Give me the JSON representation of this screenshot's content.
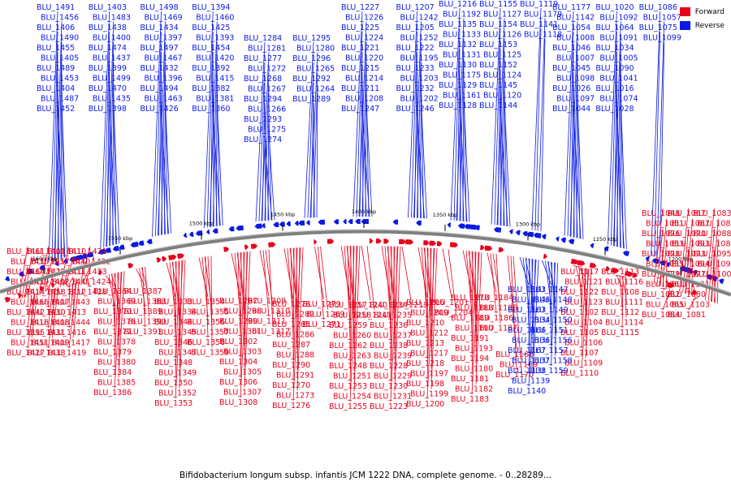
{
  "legend": {
    "forward": {
      "label": "Forward",
      "color": "#e8001c"
    },
    "reverse": {
      "label": "Reverse",
      "color": "#0b1ae6"
    }
  },
  "caption": "Bifidobacterium longum subsp. infantis JCM 1222 DNA, complete genome. - 0..28289...",
  "axis": {
    "color": "#808080",
    "ticks": [
      "1600 kbp",
      "1550 kbp",
      "1500 kbp",
      "1450 kbp",
      "1400 kbp",
      "1350 kbp",
      "1300 kbp",
      "1250 kbp",
      "1200 kbp"
    ]
  },
  "reverse_top_labels": [
    "BLU_1491",
    "BLU_1456",
    "BLU_1406",
    "BLU_1490",
    "BLU_1455",
    "BLU_1405",
    "BLU_1489",
    "BLU_1453",
    "BLU_1404",
    "BLU_1487",
    "BLU_1452",
    "BLU_1403",
    "BLU_1483",
    "BLU_1438",
    "BLU_1400",
    "BLU_1474",
    "BLU_1437",
    "BLU_1399",
    "BLU_1499",
    "BLU_1470",
    "BLU_1435",
    "BLU_1398",
    "BLU_1498",
    "BLU_1469",
    "BLU_1434",
    "BLU_1397",
    "BLU_1497",
    "BLU_1467",
    "BLU_1432",
    "BLU_1396",
    "BLU_1494",
    "BLU_1463",
    "BLU_1426",
    "BLU_1394",
    "BLU_1460",
    "BLU_1425",
    "BLU_1393",
    "BLU_1454",
    "BLU_1420",
    "BLU_1392",
    "BLU_1415",
    "BLU_1382",
    "BLU_1381",
    "BLU_1360",
    "BLU_1284",
    "BLU_1281",
    "BLU_1277",
    "BLU_1272",
    "BLU_1268",
    "BLU_1267",
    "BLU_1294",
    "BLU_1266",
    "BLU_1293",
    "BLU_1275",
    "BLU_1274",
    "BLU_1295",
    "BLU_1280",
    "BLU_1296",
    "BLU_1265",
    "BLU_1292",
    "BLU_1264",
    "BLU_1289",
    "BLU_1227",
    "BLU_1226",
    "BLU_1225",
    "BLU_1224",
    "BLU_1221",
    "BLU_1220",
    "BLU_1215",
    "BLU_1214",
    "BLU_1211",
    "BLU_1208",
    "BLU_1247",
    "BLU_1207",
    "BLU_1242",
    "BLU_1205",
    "BLU_1252",
    "BLU_1222",
    "BLU_1195",
    "BLU_1233",
    "BLU_1203",
    "BLU_1232",
    "BLU_1202",
    "BLU_1246",
    "BLU_1216",
    "BLU_1192",
    "BLU_1135",
    "BLU_1133",
    "BLU_1132",
    "BLU_1131",
    "BLU_1130",
    "BLU_1175",
    "BLU_1129",
    "BLU_1161",
    "BLU_1128",
    "BLU_1155",
    "BLU_1127",
    "BLU_1154",
    "BLU_1126",
    "BLU_1153",
    "BLU_1125",
    "BLU_1152",
    "BLU_1124",
    "BLU_1145",
    "BLU_1120",
    "BLU_1144",
    "BLU_1119",
    "BLU_1179",
    "BLU_1141",
    "BLU_1118",
    "BLU_1177",
    "BLU_1142",
    "BLU_1054",
    "BLU_1008",
    "BLU_1046",
    "BLU_1007",
    "BLU_1045",
    "BLU_1098",
    "BLU_1026",
    "BLU_1097",
    "BLU_1044",
    "BLU_1020",
    "BLU_1092",
    "BLU_1064",
    "BLU_1091",
    "BLU_1034",
    "BLU_1005",
    "BLU_1090",
    "BLU_1041",
    "BLU_1016",
    "BLU_1074",
    "BLU_1028",
    "BLU_1086",
    "BLU_1057",
    "BLU_1075",
    "BLU_1099"
  ],
  "forward_bottom_labels": [
    "BLU_1461",
    "BLU_1436",
    "BLU_1464",
    "BLU_1439",
    "BLU_1414",
    "BLU_1466",
    "BLU_1442",
    "BLU_1418",
    "BLU_1395",
    "BLU_1451",
    "BLU_1427",
    "BLU_1401",
    "BLU_1457",
    "BLU_1429",
    "BLU_1402",
    "BLU_1458",
    "BLU_1407",
    "BLU_1430",
    "BLU_1408",
    "BLU_1431",
    "BLU_1409",
    "BLU_1433",
    "BLU_1410",
    "BLU_1440",
    "BLU_1411",
    "BLU_1441",
    "BLU_1412",
    "BLU_1443",
    "BLU_1413",
    "BLU_1444",
    "BLU_1416",
    "BLU_1417",
    "BLU_1419",
    "BLU_1421",
    "BLU_1422",
    "BLU_1423",
    "BLU_1424",
    "BLU_1428",
    "BLU_1364",
    "BLU_1369",
    "BLU_1370",
    "BLU_1376",
    "BLU_1377",
    "BLU_1378",
    "BLU_1379",
    "BLU_1380",
    "BLU_1384",
    "BLU_1385",
    "BLU_1386",
    "BLU_1387",
    "BLU_1388",
    "BLU_1389",
    "BLU_1390",
    "BLU_1391",
    "BLU_1333",
    "BLU_1334",
    "BLU_1344",
    "BLU_1345",
    "BLU_1346",
    "BLU_1347",
    "BLU_1348",
    "BLU_1349",
    "BLU_1350",
    "BLU_1352",
    "BLU_1353",
    "BLU_1354",
    "BLU_1355",
    "BLU_1356",
    "BLU_1357",
    "BLU_1358",
    "BLU_1359",
    "BLU_1297",
    "BLU_1298",
    "BLU_1299",
    "BLU_1301",
    "BLU_1302",
    "BLU_1303",
    "BLU_1304",
    "BLU_1305",
    "BLU_1306",
    "BLU_1307",
    "BLU_1308",
    "BLU_1309",
    "BLU_1310",
    "BLU_1311",
    "BLU_1312",
    "BLU_1278",
    "BLU_1282",
    "BLU_1285",
    "BLU_1286",
    "BLU_1287",
    "BLU_1288",
    "BLU_1290",
    "BLU_1291",
    "BLU_1270",
    "BLU_1273",
    "BLU_1276",
    "BLU_1279",
    "BLU_1269",
    "BLU_1271",
    "BLU_1257",
    "BLU_1258",
    "BLU_1259",
    "BLU_1260",
    "BLU_1262",
    "BLU_1263",
    "BLU_1248",
    "BLU_1251",
    "BLU_1253",
    "BLU_1254",
    "BLU_1255",
    "BLU_1240",
    "BLU_1241",
    "BLU_1234",
    "BLU_1235",
    "BLU_1236",
    "BLU_1237",
    "BLU_1238",
    "BLU_1239",
    "BLU_1228",
    "BLU_1229",
    "BLU_1230",
    "BLU_1231",
    "BLU_1223",
    "BLU_1219",
    "BLU_1206",
    "BLU_1209",
    "BLU_1210",
    "BLU_1212",
    "BLU_1213",
    "BLU_1217",
    "BLU_1218",
    "BLU_1197",
    "BLU_1198",
    "BLU_1199",
    "BLU_1200",
    "BLU_1201",
    "BLU_1204",
    "BLU_1178",
    "BLU_1188",
    "BLU_1189",
    "BLU_1190",
    "BLU_1191",
    "BLU_1193",
    "BLU_1194",
    "BLU_1180",
    "BLU_1181",
    "BLU_1182",
    "BLU_1183",
    "BLU_1184",
    "BLU_1185",
    "BLU_1186",
    "BLU_1187",
    "BLU_1168",
    "BLU_1169",
    "BLU_1170",
    "BLU_1117",
    "BLU_1121",
    "BLU_1122",
    "BLU_1123",
    "BLU_1102",
    "BLU_1104",
    "BLU_1105",
    "BLU_1106",
    "BLU_1107",
    "BLU_1109",
    "BLU_1110",
    "BLU_1113",
    "BLU_1116",
    "BLU_1108",
    "BLU_1111",
    "BLU_1112",
    "BLU_1114",
    "BLU_1115",
    "BLU_1048",
    "BLU_1051",
    "BLU_1076",
    "BLU_1053",
    "BLU_1078",
    "BLU_1055",
    "BLU_1079",
    "BLU_1061",
    "BLU_1082",
    "BLU_1065",
    "BLU_1084",
    "BLU_1067",
    "BLU_1087",
    "BLU_1070",
    "BLU_1093",
    "BLU_1073",
    "BLU_1094",
    "BLU_1077",
    "BLU_1101",
    "BLU_1080",
    "BLU_1103",
    "BLU_1081",
    "BLU_1083",
    "BLU_1085",
    "BLU_1088",
    "BLU_1089",
    "BLU_1095",
    "BLU_1096",
    "BLU_1100"
  ],
  "reverse_bottom_labels": [
    "BLU_1143",
    "BLU_1146",
    "BLU_1163",
    "BLU_1134",
    "BLU_1166",
    "BLU_1136",
    "BLU_1167",
    "BLU_1137",
    "BLU_1138",
    "BLU_1139",
    "BLU_1140",
    "BLU_1147",
    "BLU_1148",
    "BLU_1149",
    "BLU_1150",
    "BLU_1151",
    "BLU_1156",
    "BLU_1157",
    "BLU_1158",
    "BLU_1159"
  ]
}
